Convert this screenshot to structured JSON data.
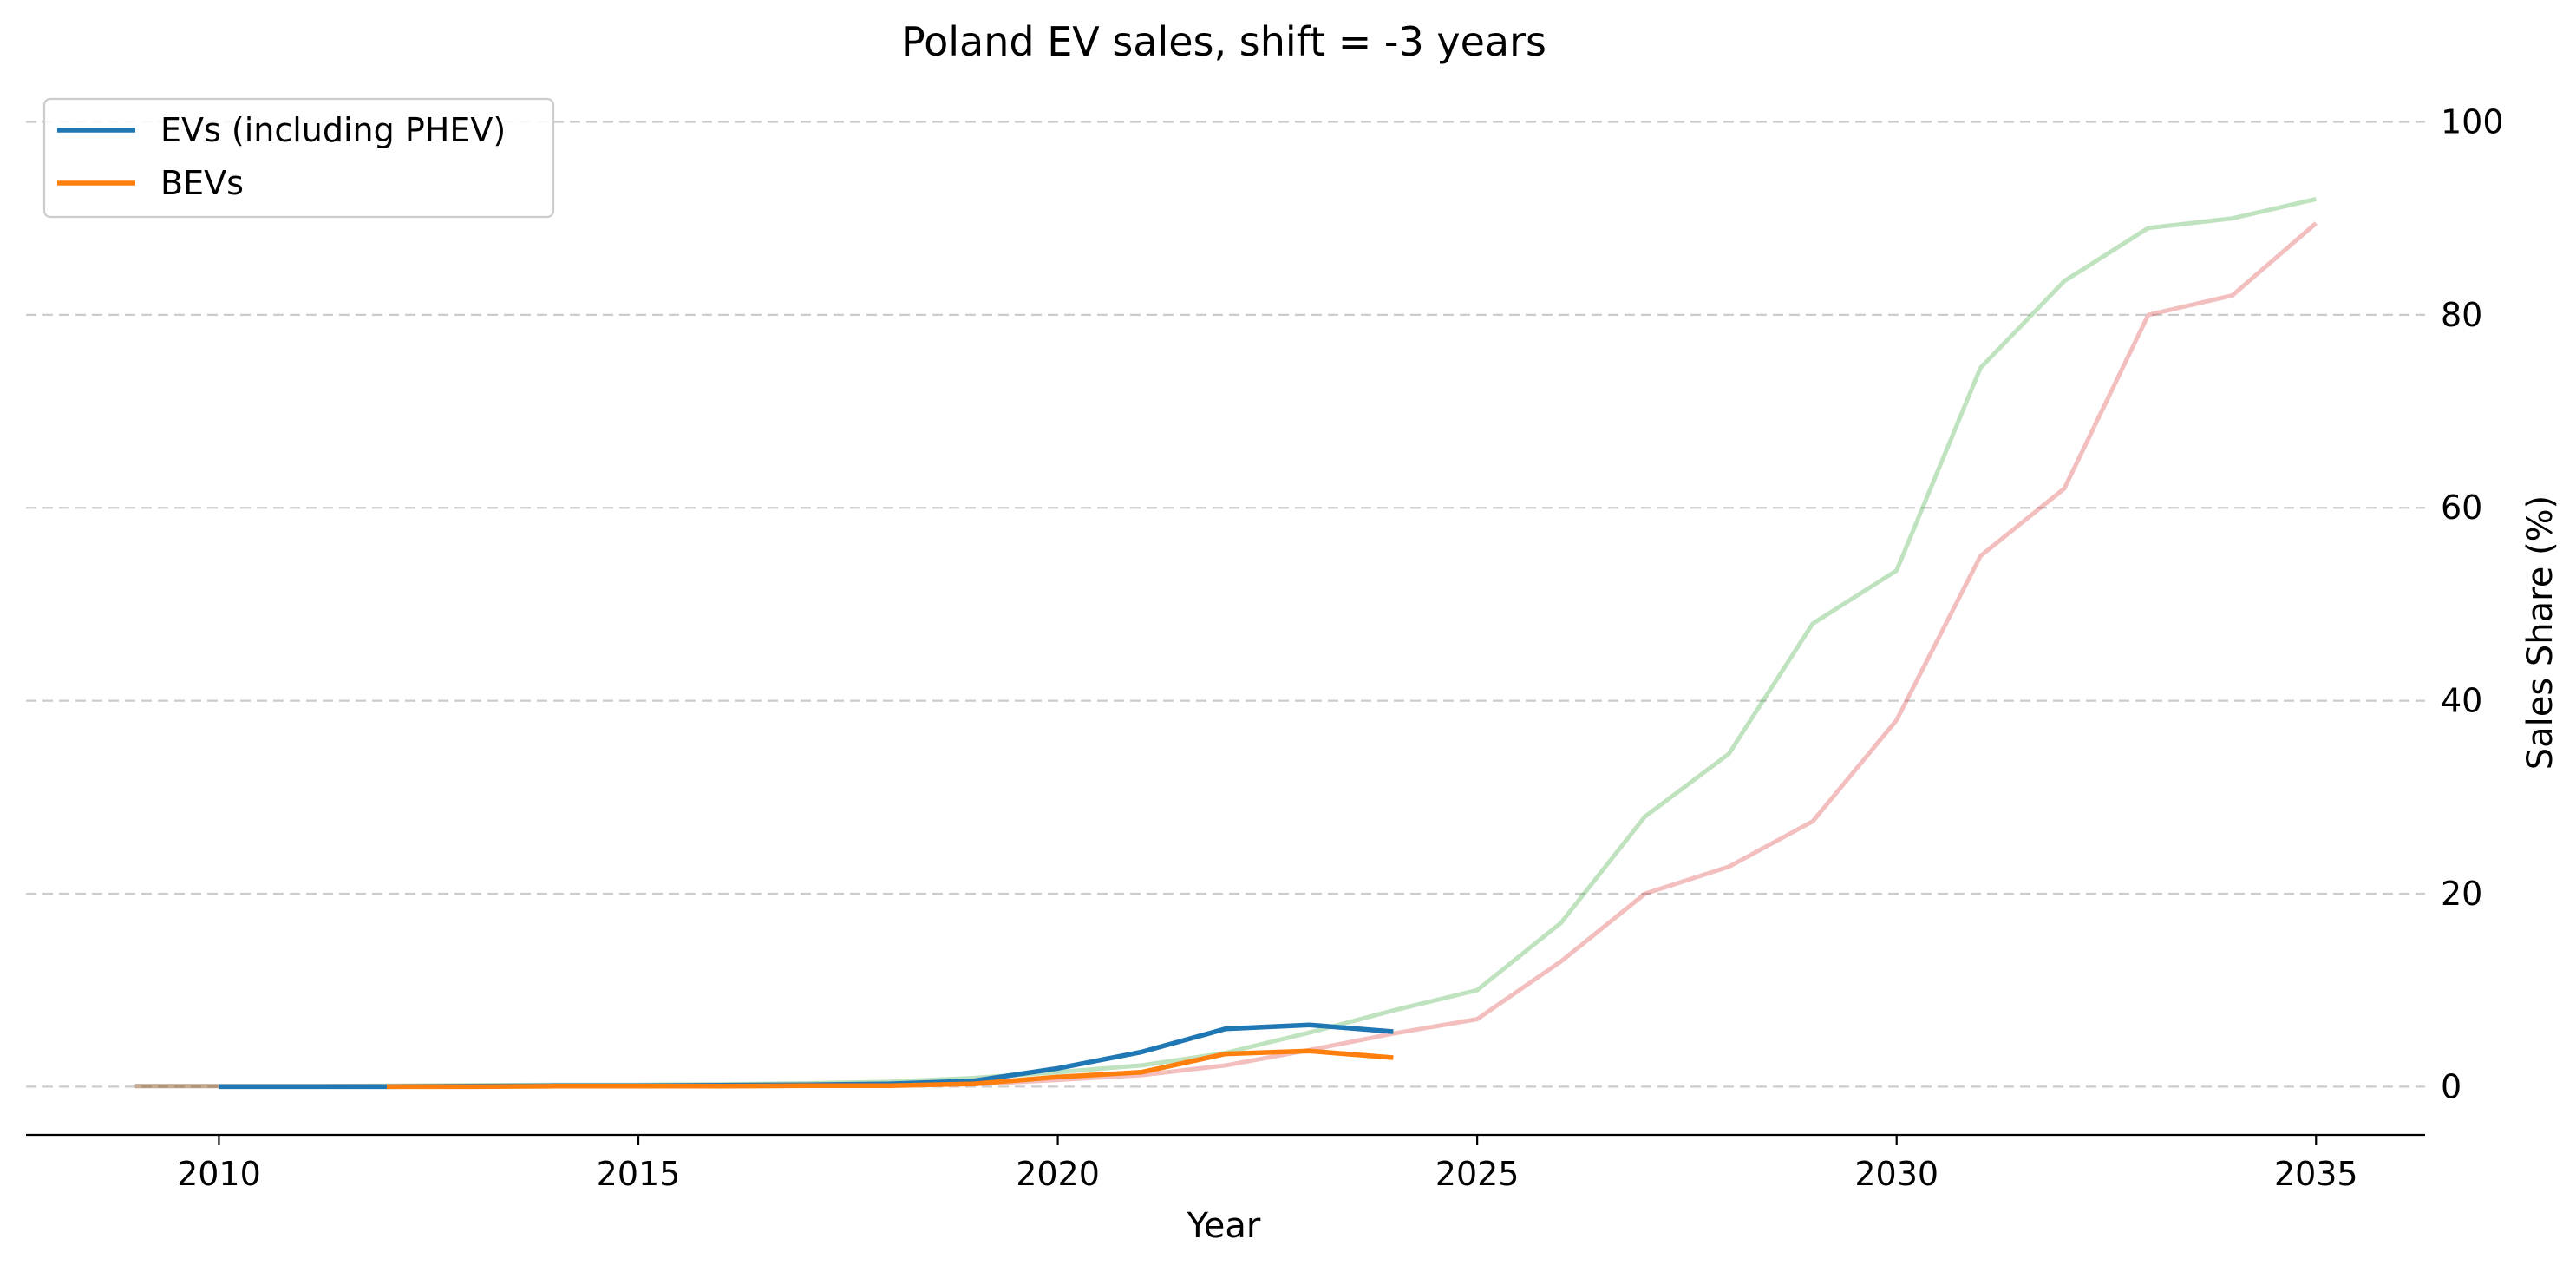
{
  "chart_data": {
    "type": "line",
    "title": "Poland EV sales, shift = -3 years",
    "xlabel": "Year",
    "ylabel": "Sales Share (%)",
    "xlim": [
      2007.7,
      2036.3
    ],
    "ylim": [
      -5,
      104
    ],
    "x_ticks": [
      2010,
      2015,
      2020,
      2025,
      2030,
      2035
    ],
    "y_ticks": [
      0,
      20,
      40,
      60,
      80,
      100
    ],
    "y_axis_side": "right",
    "grid": "horizontal dashed",
    "legend_position": "top-left",
    "series": [
      {
        "name": "EVs (including PHEV)",
        "color": "#1f77b4",
        "alpha": 1.0,
        "in_legend": true,
        "x": [
          2010,
          2011,
          2012,
          2013,
          2014,
          2015,
          2016,
          2017,
          2018,
          2019,
          2020,
          2021,
          2022,
          2023,
          2024
        ],
        "y": [
          0.0,
          0.0,
          0.0,
          0.05,
          0.1,
          0.1,
          0.15,
          0.2,
          0.3,
          0.6,
          1.9,
          3.6,
          6.0,
          6.4,
          5.7
        ]
      },
      {
        "name": "BEVs",
        "color": "#ff7f0e",
        "alpha": 1.0,
        "in_legend": true,
        "x": [
          2012,
          2013,
          2014,
          2015,
          2016,
          2017,
          2018,
          2019,
          2020,
          2021,
          2022,
          2023,
          2024
        ],
        "y": [
          0.0,
          0.0,
          0.05,
          0.05,
          0.05,
          0.1,
          0.1,
          0.3,
          1.0,
          1.5,
          3.4,
          3.7,
          3.0
        ]
      },
      {
        "color": "#2ca02c",
        "alpha": 0.3,
        "in_legend": false,
        "x": [
          2009,
          2010,
          2011,
          2012,
          2013,
          2014,
          2015,
          2016,
          2017,
          2018,
          2019,
          2020,
          2021,
          2022,
          2023,
          2024,
          2025,
          2026,
          2027,
          2028,
          2029,
          2030,
          2031,
          2032,
          2033,
          2034,
          2035
        ],
        "y": [
          0.05,
          0.05,
          0.05,
          0.1,
          0.15,
          0.2,
          0.2,
          0.25,
          0.35,
          0.5,
          0.9,
          1.5,
          2.2,
          3.5,
          5.6,
          7.9,
          10.0,
          17.0,
          28.0,
          34.5,
          48.0,
          53.5,
          74.5,
          83.5,
          89.0,
          90.0,
          92.0
        ]
      },
      {
        "color": "#d62728",
        "alpha": 0.3,
        "in_legend": false,
        "x": [
          2009,
          2010,
          2011,
          2012,
          2013,
          2014,
          2015,
          2016,
          2017,
          2018,
          2019,
          2020,
          2021,
          2022,
          2023,
          2024,
          2025,
          2026,
          2027,
          2028,
          2029,
          2030,
          2031,
          2032,
          2033,
          2034,
          2035
        ],
        "y": [
          0.05,
          0.05,
          0.05,
          0.05,
          0.05,
          0.05,
          0.05,
          0.05,
          0.1,
          0.15,
          0.25,
          0.7,
          1.2,
          2.2,
          3.8,
          5.5,
          7.0,
          13.0,
          20.0,
          22.8,
          27.5,
          38.0,
          55.0,
          62.0,
          80.0,
          82.0,
          89.5
        ]
      }
    ]
  }
}
